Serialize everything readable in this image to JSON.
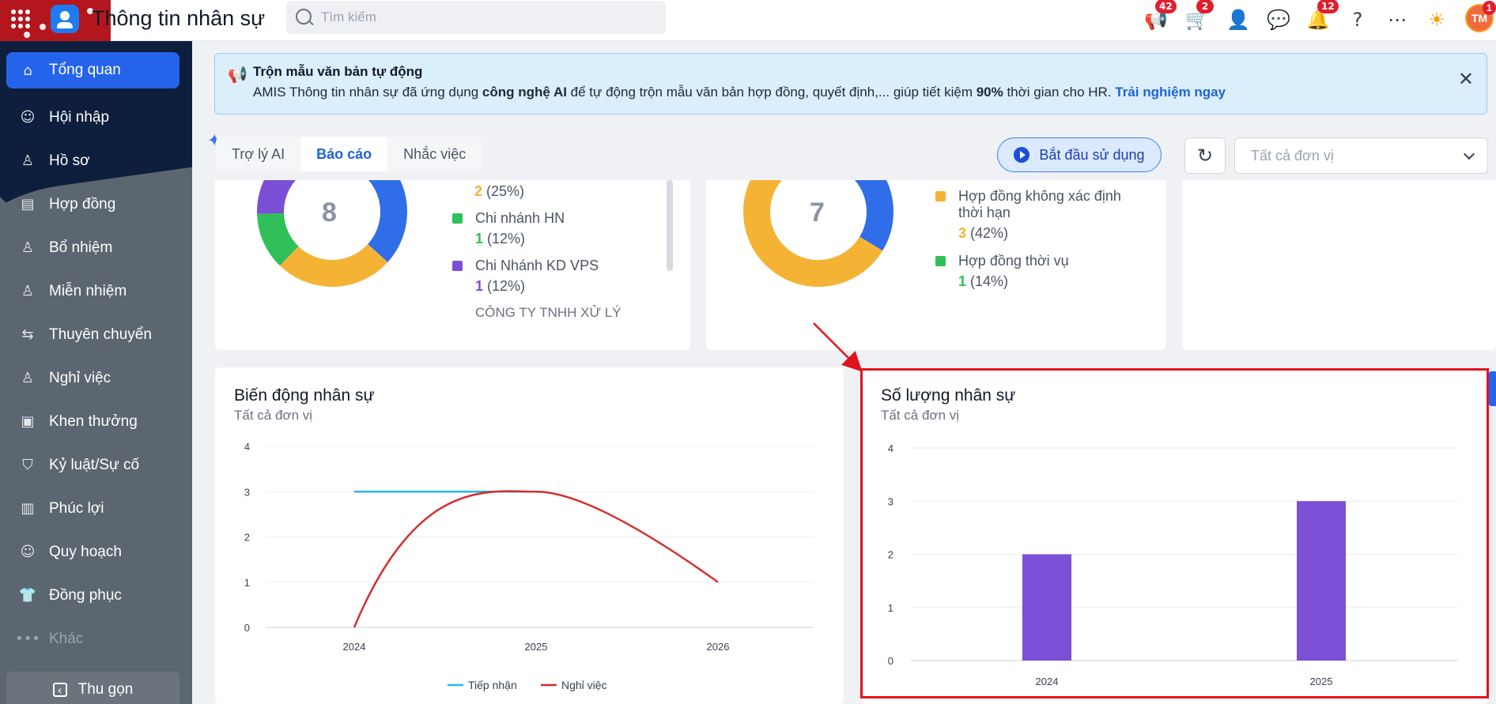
{
  "header": {
    "app_title": "Thông tin nhân sự",
    "search_placeholder": "Tìm kiếm",
    "badges": {
      "megaphone": "42",
      "cart": "2",
      "bell": "12",
      "avatar": "1"
    },
    "avatar_initials": "TM"
  },
  "sidebar": {
    "items": [
      {
        "label": "Tổng quan",
        "icon": "home-icon"
      },
      {
        "label": "Hội nhập",
        "icon": "people-icon"
      },
      {
        "label": "Hồ sơ",
        "icon": "user-icon"
      },
      {
        "label": "Hợp đồng",
        "icon": "document-icon"
      },
      {
        "label": "Bổ nhiệm",
        "icon": "user-plus-icon"
      },
      {
        "label": "Miễn nhiệm",
        "icon": "user-minus-icon"
      },
      {
        "label": "Thuyên chuyển",
        "icon": "transfer-icon"
      },
      {
        "label": "Nghỉ việc",
        "icon": "user-leave-icon"
      },
      {
        "label": "Khen thưởng",
        "icon": "reward-icon"
      },
      {
        "label": "Kỷ luật/Sự cố",
        "icon": "shield-icon"
      },
      {
        "label": "Phúc lợi",
        "icon": "benefit-icon"
      },
      {
        "label": "Quy hoạch",
        "icon": "planning-icon"
      },
      {
        "label": "Đồng phục",
        "icon": "shirt-icon"
      },
      {
        "label": "Khác",
        "icon": "more-icon"
      }
    ],
    "collapse_label": "Thu gọn"
  },
  "banner": {
    "title": "Trộn mẫu văn bản tự động",
    "text_1": "AMIS Thông tin nhân sự đã ứng dụng ",
    "text_bold_1": "công nghệ AI",
    "text_2": " để tự động trộn mẫu văn bản hợp đồng, quyết định,... giúp tiết kiệm ",
    "text_bold_2": "90%",
    "text_3": " thời gian cho HR. ",
    "link": "Trải nghiệm ngay"
  },
  "tabs": [
    {
      "label": "Trợ lý AI"
    },
    {
      "label": "Báo cáo"
    },
    {
      "label": "Nhắc việc"
    }
  ],
  "toolbar": {
    "start_label": "Bắt đầu sử dụng",
    "unit_select_value": "Tất cả đơn vị"
  },
  "card1": {
    "total": "8",
    "legend": [
      {
        "name": "",
        "count": "2",
        "pct": " (25%)",
        "color": "#f5b335"
      },
      {
        "name": "Chi nhánh HN",
        "count": "1",
        "pct": " (12%)",
        "color": "#2fc05a"
      },
      {
        "name": "Chi Nhánh KD VPS",
        "count": "1",
        "pct": " (12%)",
        "color": "#7a4fd6"
      }
    ],
    "cut_text": "CÔNG TY TNHH XỬ LÝ"
  },
  "card2": {
    "total": "7",
    "legend": [
      {
        "name": "Hợp đồng không xác định thời hạn",
        "count": "3",
        "pct": " (42%)",
        "color": "#f5b335"
      },
      {
        "name": "Hợp đồng thời vụ",
        "count": "1",
        "pct": " (14%)",
        "color": "#2fc05a"
      }
    ]
  },
  "colors": {
    "primary": "#2563eb",
    "blue_line": "#29b6f6",
    "red_line": "#d32f2f",
    "bar": "#7b4fd6",
    "donut_blue": "#2f6ee8",
    "donut_yellow": "#f5b335",
    "donut_green": "#2fc05a",
    "donut_purple": "#7a4fd6"
  },
  "chart_data": [
    {
      "type": "line",
      "title": "Biến động nhân sự",
      "subtitle": "Tất cả đơn vị",
      "categories": [
        "2024",
        "2025",
        "2026"
      ],
      "series": [
        {
          "name": "Tiếp nhận",
          "values": [
            3,
            3,
            null
          ]
        },
        {
          "name": "Nghỉ việc",
          "values": [
            0,
            3,
            1
          ]
        }
      ],
      "ylim": [
        0,
        4
      ],
      "yticks": [
        "0",
        "1",
        "2",
        "3",
        "4"
      ],
      "legend": "bottom"
    },
    {
      "type": "bar",
      "title": "Số lượng nhân sự",
      "subtitle": "Tất cả đơn vị",
      "categories": [
        "2024",
        "2025"
      ],
      "values": [
        2,
        3
      ],
      "ylim": [
        0,
        4
      ],
      "yticks": [
        "0",
        "1",
        "2",
        "3",
        "4"
      ]
    }
  ]
}
